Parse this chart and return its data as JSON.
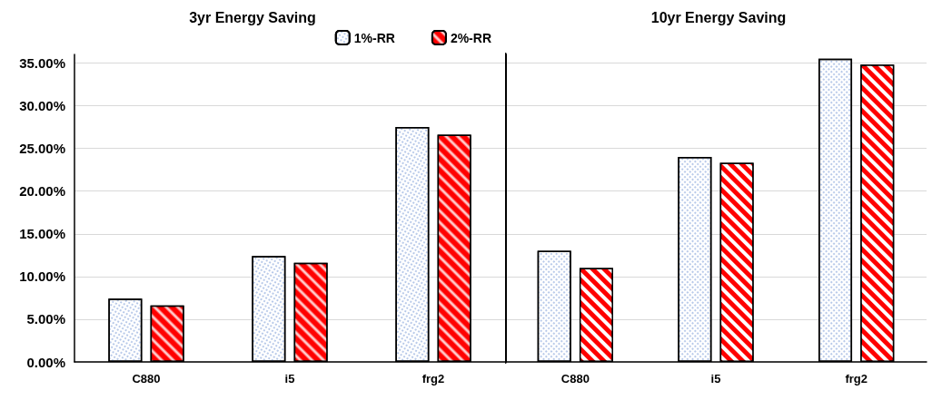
{
  "chart_data": [
    {
      "type": "bar",
      "title": "3yr Energy Saving",
      "categories": [
        "C880",
        "i5",
        "frg2"
      ],
      "series": [
        {
          "name": "1%-RR",
          "color": "#ffffff",
          "values": [
            7.4,
            12.4,
            27.5
          ]
        },
        {
          "name": "2%-RR",
          "color": "#ff0000",
          "values": [
            6.6,
            11.6,
            26.6
          ]
        }
      ],
      "ylim": [
        0,
        36
      ],
      "yticks": [
        {
          "value": 0,
          "label": "0.00%"
        },
        {
          "value": 5,
          "label": "5.00%"
        },
        {
          "value": 10,
          "label": "10.00%"
        },
        {
          "value": 15,
          "label": "15.00%"
        },
        {
          "value": 20,
          "label": "20.00%"
        },
        {
          "value": 25,
          "label": "25.00%"
        },
        {
          "value": 30,
          "label": "30.00%"
        },
        {
          "value": 35,
          "label": "35.00%"
        }
      ],
      "grid": "y",
      "legend": "top right"
    },
    {
      "type": "bar",
      "title": "10yr Energy Saving",
      "categories": [
        "C880",
        "i5",
        "frg2"
      ],
      "series": [
        {
          "color": "#ffffff",
          "values": [
            13.0,
            24.0,
            35.5
          ]
        },
        {
          "color": "#ff0000",
          "values": [
            11.0,
            23.3,
            34.8
          ]
        }
      ],
      "ylim": [
        0,
        36
      ],
      "grid": "y",
      "tick_labels": "x"
    }
  ]
}
